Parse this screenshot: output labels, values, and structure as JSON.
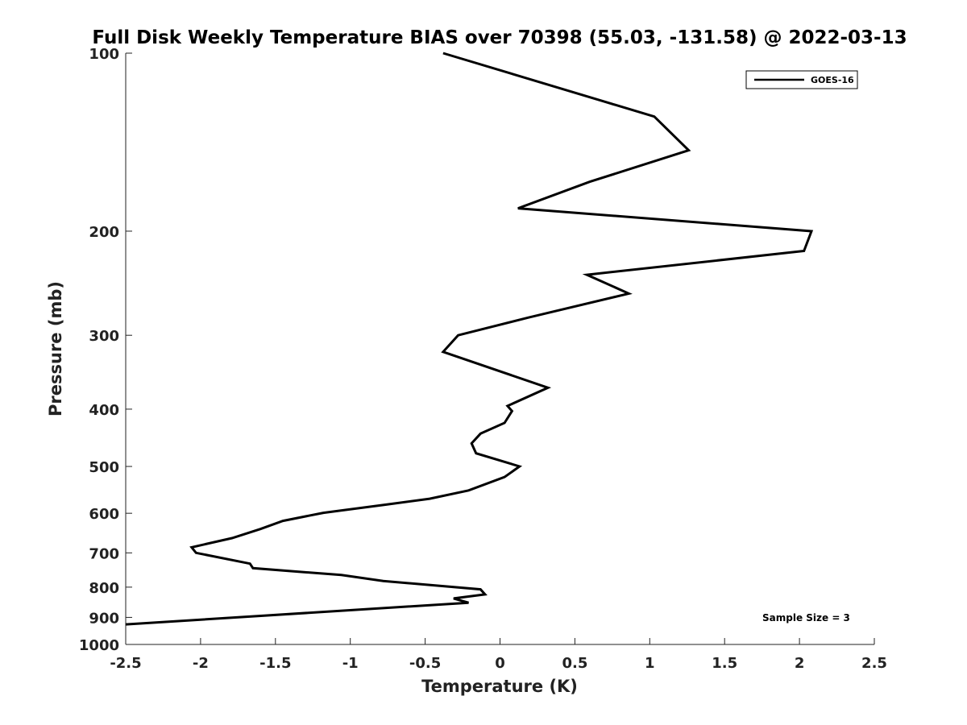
{
  "chart_data": {
    "type": "line",
    "title": "Full Disk Weekly Temperature BIAS over 70398 (55.03, -131.58) @ 2022-03-13",
    "xlabel": "Temperature (K)",
    "ylabel": "Pressure (mb)",
    "xlim": [
      -2.5,
      2.5
    ],
    "ylim": [
      100,
      1000
    ],
    "y_scale": "log",
    "y_reversed": true,
    "x_ticks": [
      -2.5,
      -2,
      -1.5,
      -1,
      -0.5,
      0,
      0.5,
      1,
      1.5,
      2,
      2.5
    ],
    "x_tick_labels": [
      "-2.5",
      "-2",
      "-1.5",
      "-1",
      "-0.5",
      "0",
      "0.5",
      "1",
      "1.5",
      "2",
      "2.5"
    ],
    "y_ticks": [
      100,
      200,
      300,
      400,
      500,
      600,
      700,
      800,
      900,
      1000
    ],
    "y_tick_labels": [
      "100",
      "200",
      "300",
      "400",
      "500",
      "600",
      "700",
      "800",
      "900",
      "1000"
    ],
    "grid": false,
    "legend": {
      "position": "top-right",
      "entries": [
        "GOES-16"
      ]
    },
    "annotation": "Sample Size = 3",
    "series": [
      {
        "name": "GOES-16",
        "color": "#000000",
        "points": [
          [
            -0.38,
            100
          ],
          [
            1.03,
            128
          ],
          [
            1.26,
            146
          ],
          [
            0.6,
            165
          ],
          [
            0.12,
            183
          ],
          [
            2.08,
            200
          ],
          [
            2.03,
            216
          ],
          [
            0.58,
            237
          ],
          [
            0.86,
            255
          ],
          [
            0.19,
            280
          ],
          [
            -0.28,
            300
          ],
          [
            -0.38,
            320
          ],
          [
            0.32,
            368
          ],
          [
            0.05,
            395
          ],
          [
            0.08,
            403
          ],
          [
            0.03,
            422
          ],
          [
            -0.13,
            440
          ],
          [
            -0.19,
            457
          ],
          [
            -0.16,
            475
          ],
          [
            0.13,
            500
          ],
          [
            0.03,
            521
          ],
          [
            -0.21,
            549
          ],
          [
            -0.47,
            567
          ],
          [
            -0.76,
            580
          ],
          [
            -1.18,
            599
          ],
          [
            -1.45,
            618
          ],
          [
            -1.6,
            638
          ],
          [
            -1.79,
            661
          ],
          [
            -2.06,
            685
          ],
          [
            -2.03,
            700
          ],
          [
            -1.67,
            730
          ],
          [
            -1.65,
            743
          ],
          [
            -1.06,
            763
          ],
          [
            -0.78,
            781
          ],
          [
            -0.13,
            807
          ],
          [
            -0.1,
            823
          ],
          [
            -0.31,
            836
          ],
          [
            -0.21,
            850
          ],
          [
            -2.5,
            925
          ]
        ]
      }
    ]
  }
}
